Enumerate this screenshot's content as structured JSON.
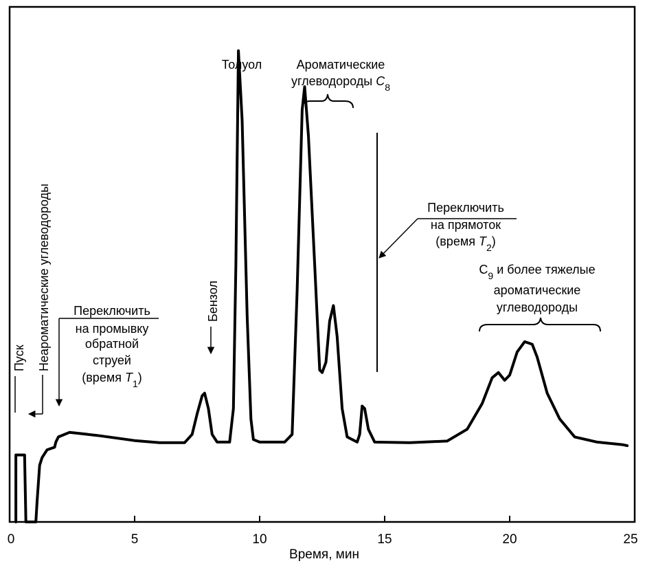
{
  "chart_data": {
    "type": "line",
    "title": "",
    "xlabel": "Время, мин",
    "ylabel": "",
    "xlim": [
      0,
      25
    ],
    "x_ticks": [
      0,
      5,
      10,
      15,
      20,
      25
    ],
    "x_tick_labels": [
      "0",
      "5",
      "10",
      "15",
      "20",
      "25"
    ],
    "y_ticks_shown": false,
    "grid": false,
    "legend": "none",
    "series": [
      {
        "values_note_units": "x in min, y relative detector signal (0 = bottom of frame, 1 = top)",
        "points": [
          [
            0.25,
            0.0
          ],
          [
            0.25,
            0.13
          ],
          [
            0.6,
            0.13
          ],
          [
            0.65,
            0.0
          ],
          [
            1.05,
            0.0
          ],
          [
            1.1,
            0.04
          ],
          [
            1.2,
            0.11
          ],
          [
            1.3,
            0.125
          ],
          [
            1.5,
            0.14
          ],
          [
            1.8,
            0.145
          ],
          [
            1.85,
            0.155
          ],
          [
            1.95,
            0.165
          ],
          [
            2.4,
            0.174
          ],
          [
            3.5,
            0.168
          ],
          [
            5.0,
            0.158
          ],
          [
            6.0,
            0.154
          ],
          [
            7.0,
            0.154
          ],
          [
            7.3,
            0.17
          ],
          [
            7.5,
            0.21
          ],
          [
            7.7,
            0.245
          ],
          [
            7.8,
            0.25
          ],
          [
            7.95,
            0.22
          ],
          [
            8.1,
            0.17
          ],
          [
            8.3,
            0.155
          ],
          [
            8.8,
            0.155
          ],
          [
            8.95,
            0.22
          ],
          [
            9.05,
            0.5
          ],
          [
            9.15,
            0.915
          ],
          [
            9.3,
            0.78
          ],
          [
            9.5,
            0.4
          ],
          [
            9.65,
            0.2
          ],
          [
            9.75,
            0.16
          ],
          [
            10.0,
            0.155
          ],
          [
            11.0,
            0.155
          ],
          [
            11.3,
            0.17
          ],
          [
            11.5,
            0.45
          ],
          [
            11.7,
            0.8
          ],
          [
            11.8,
            0.845
          ],
          [
            11.95,
            0.75
          ],
          [
            12.2,
            0.5
          ],
          [
            12.4,
            0.295
          ],
          [
            12.5,
            0.29
          ],
          [
            12.65,
            0.31
          ],
          [
            12.8,
            0.39
          ],
          [
            12.95,
            0.42
          ],
          [
            13.1,
            0.36
          ],
          [
            13.3,
            0.22
          ],
          [
            13.5,
            0.165
          ],
          [
            13.9,
            0.155
          ],
          [
            14.0,
            0.17
          ],
          [
            14.1,
            0.225
          ],
          [
            14.2,
            0.22
          ],
          [
            14.35,
            0.18
          ],
          [
            14.6,
            0.155
          ],
          [
            16.0,
            0.154
          ],
          [
            17.5,
            0.157
          ],
          [
            18.3,
            0.18
          ],
          [
            18.9,
            0.23
          ],
          [
            19.3,
            0.28
          ],
          [
            19.55,
            0.29
          ],
          [
            19.8,
            0.275
          ],
          [
            20.0,
            0.285
          ],
          [
            20.3,
            0.33
          ],
          [
            20.6,
            0.35
          ],
          [
            20.9,
            0.345
          ],
          [
            21.1,
            0.32
          ],
          [
            21.5,
            0.25
          ],
          [
            22.0,
            0.2
          ],
          [
            22.6,
            0.165
          ],
          [
            23.5,
            0.155
          ],
          [
            24.5,
            0.15
          ],
          [
            24.7,
            0.148
          ]
        ]
      }
    ],
    "annotations": [
      {
        "id": "pusk",
        "text": "Пуск",
        "x": 0.35,
        "vertical": true
      },
      {
        "id": "nonarom",
        "text": "Неароматические углеводороды",
        "x": 1.1,
        "vertical": true
      },
      {
        "id": "switch1",
        "lines": [
          "Переключить",
          "на промывку",
          "обратной",
          "струей",
          "(время T1)"
        ]
      },
      {
        "id": "benzol",
        "text": "Бензол",
        "x": 7.7,
        "vertical": true
      },
      {
        "id": "toluol",
        "text": "Толуол",
        "x": 9.15
      },
      {
        "id": "arom_c8",
        "lines": [
          "Ароматические",
          "углеводороды C8"
        ]
      },
      {
        "id": "switch2",
        "lines": [
          "Переключить",
          "на прямоток",
          "(время T2)"
        ]
      },
      {
        "id": "c9",
        "lines": [
          "C9 и более тяжелые",
          "ароматические",
          "углеводороды"
        ]
      }
    ]
  },
  "labels": {
    "xlabel": "Время, мин",
    "pusk": "Пуск",
    "nonarom": "Неароматические углеводороды",
    "switch1_l1": "Переключить",
    "switch1_l2": "на промывку",
    "switch1_l3": "обратной",
    "switch1_l4": "струей",
    "switch1_l5a": "(время ",
    "switch1_l5b": "T",
    "switch1_l5c": "1",
    "switch1_l5d": ")",
    "benzol": "Бензол",
    "toluol": "Толуол",
    "arom_l1": "Ароматические",
    "arom_l2a": "углеводороды ",
    "arom_l2b": "C",
    "arom_l2c": "8",
    "switch2_l1": "Переключить",
    "switch2_l2": "на прямоток",
    "switch2_l3a": "(время ",
    "switch2_l3b": "T",
    "switch2_l3c": "2",
    "switch2_l3d": ")",
    "c9_l1a": "C",
    "c9_l1b": "9",
    "c9_l1c": " и более тяжелые",
    "c9_l2": "ароматические",
    "c9_l3": "углеводороды"
  },
  "colors": {
    "line": "#000000",
    "background": "#ffffff"
  }
}
